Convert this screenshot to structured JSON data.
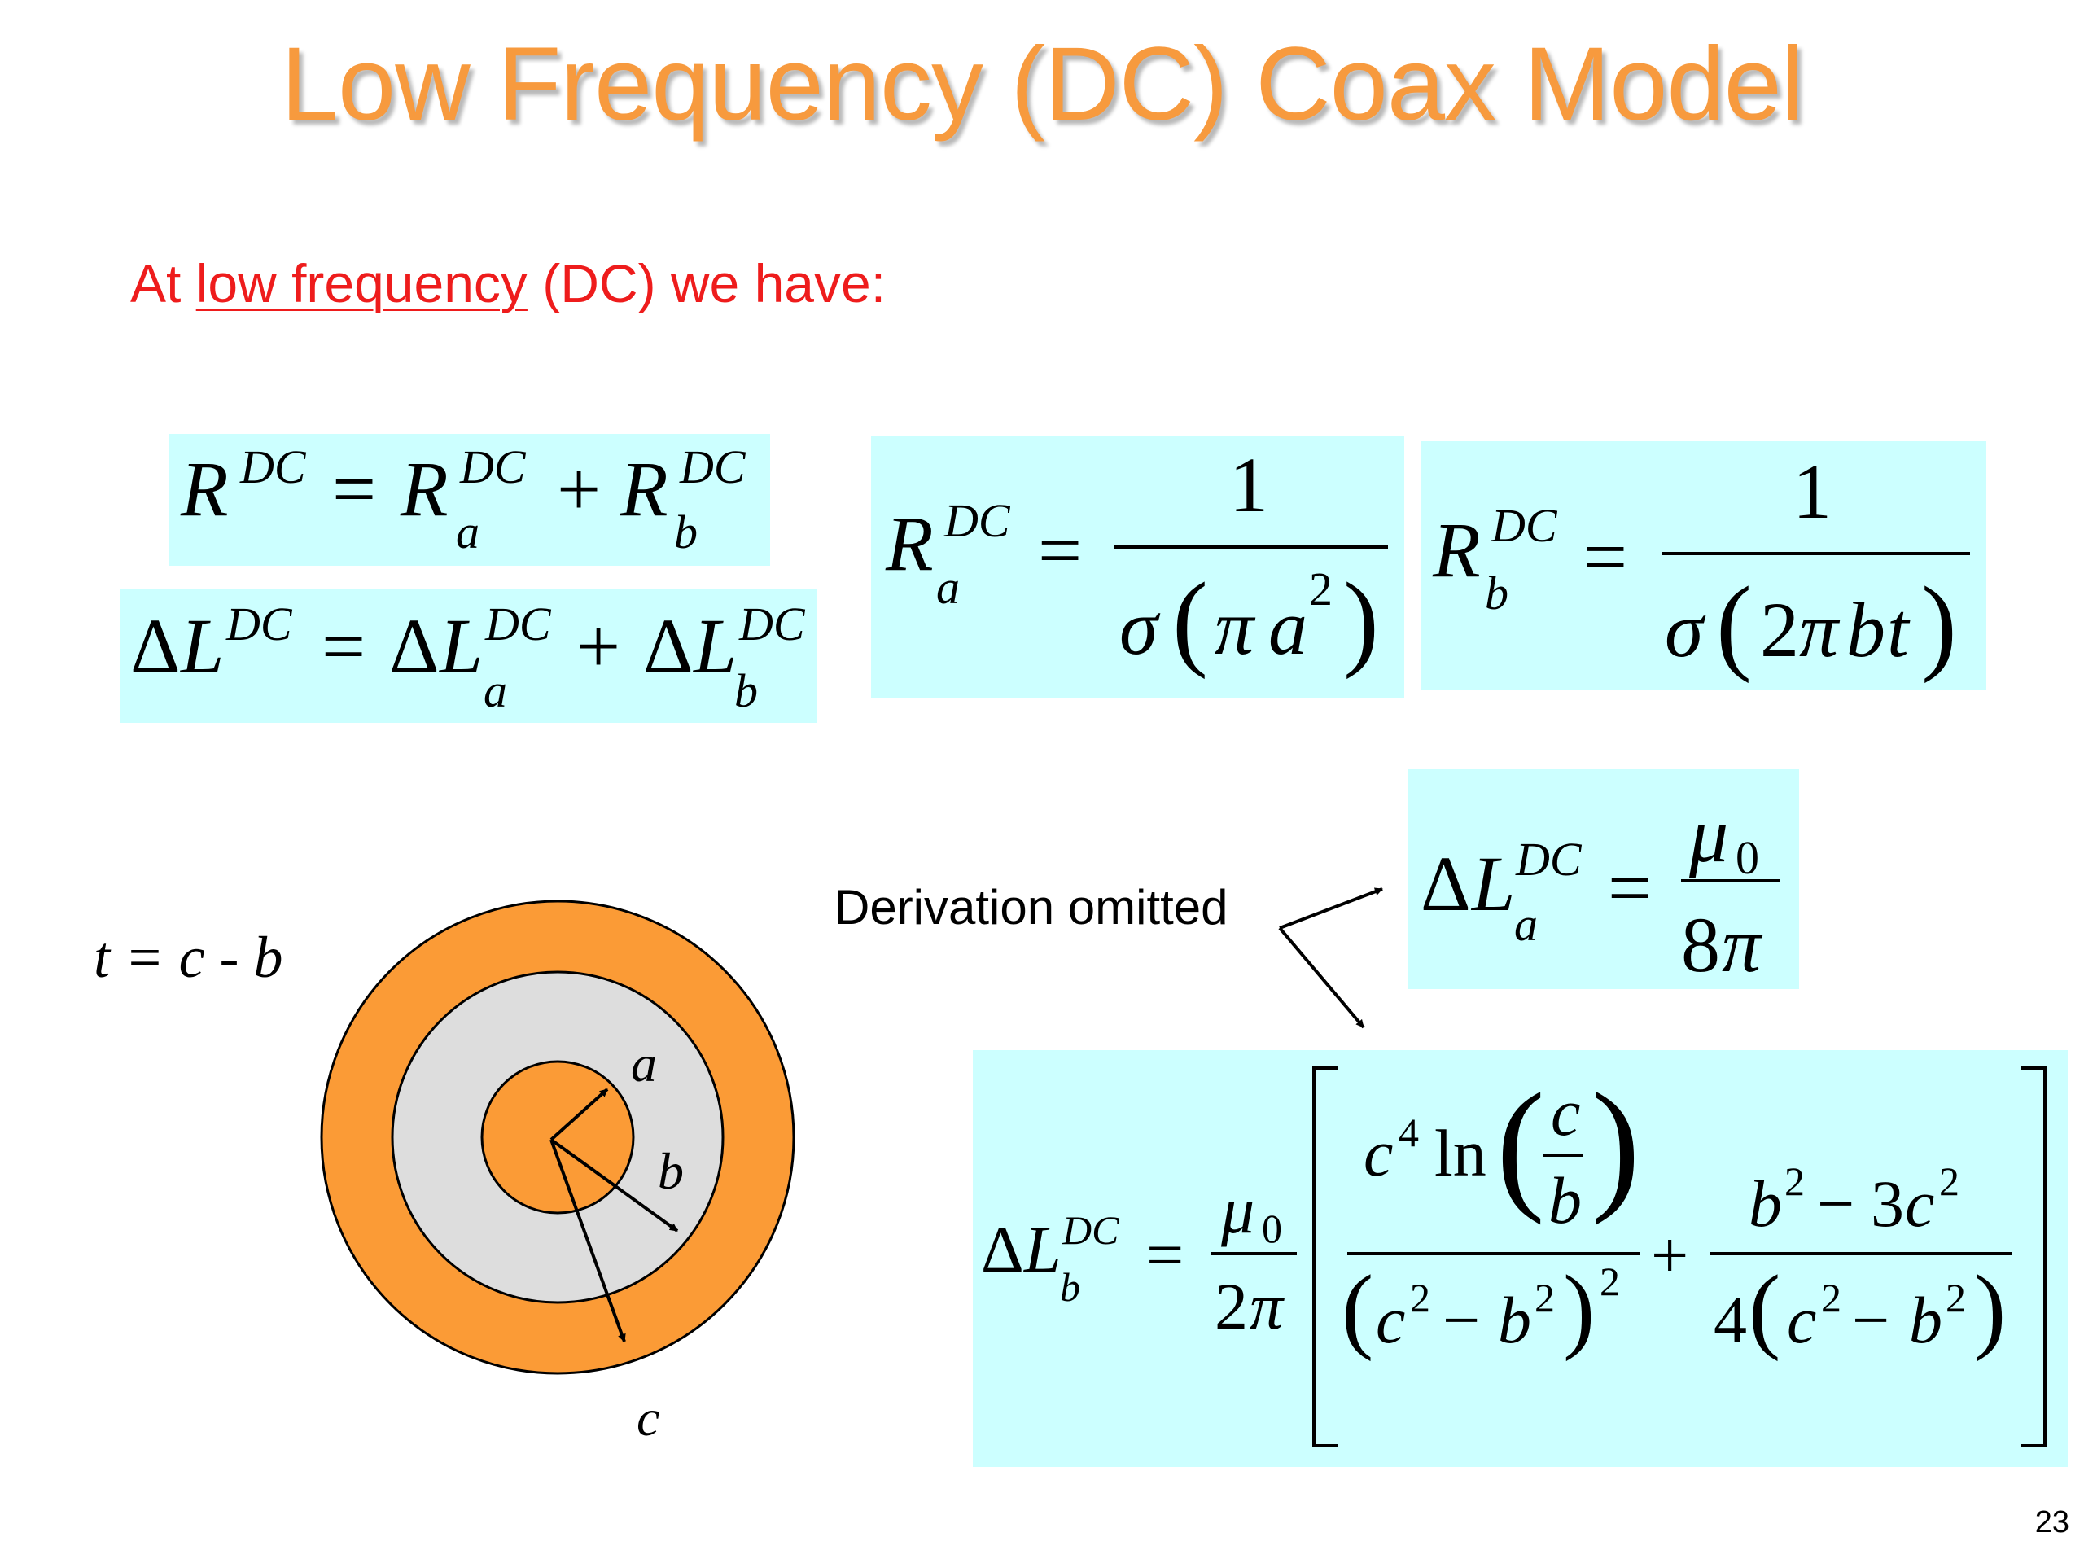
{
  "slide": {
    "title": "Low Frequency (DC) Coax Model",
    "intro": {
      "before": "At ",
      "link": "low frequency",
      "after": " (DC) we have:"
    },
    "note": "Derivation omitted",
    "page_number": "23"
  },
  "symbols": {
    "R": "R",
    "L": "L",
    "Delta": "Δ",
    "DC": "DC",
    "a": "a",
    "b": "b",
    "c": "c",
    "t": "t",
    "eq": "=",
    "plus": "+",
    "minus": "−",
    "one": "1",
    "sigma": "σ",
    "pi": "π",
    "mu": "μ",
    "zero": "0",
    "two": "2",
    "three": "3",
    "four": "4",
    "eight": "8",
    "ln": "ln",
    "lpar": "(",
    "rpar": ")"
  },
  "diagram": {
    "relation": "t = c - b",
    "labels": {
      "a": "a",
      "b": "b",
      "c": "c"
    },
    "colors": {
      "conductor": "#fb9b36",
      "dielectric": "#dddddd",
      "box": "#ccffff",
      "title": "#f79a3e",
      "intro": "#ee1c1c"
    }
  }
}
